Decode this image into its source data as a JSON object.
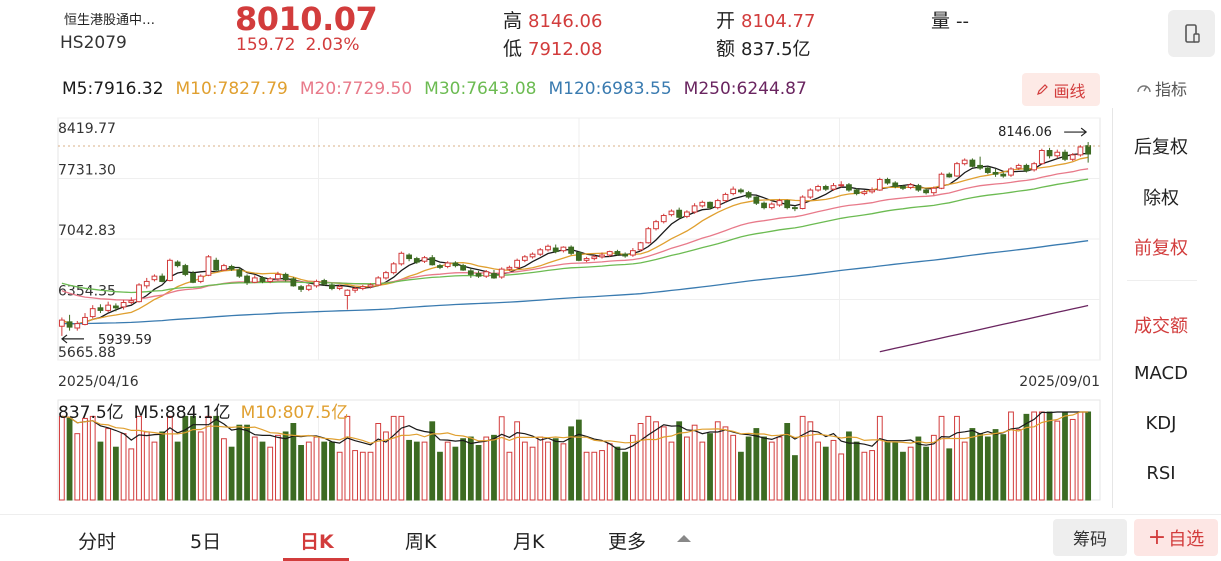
{
  "header": {
    "name": "恒生港股通中…",
    "code": "HS2079",
    "price": "8010.07",
    "change_abs": "159.72",
    "change_pct": "2.03%",
    "high_label": "高",
    "high": "8146.06",
    "low_label": "低",
    "low": "7912.08",
    "open_label": "开",
    "open": "8104.77",
    "amount_label": "额",
    "amount": "837.5亿",
    "volume_label": "量",
    "volume": "--"
  },
  "ma": [
    {
      "label": "M5:7916.32",
      "color": "#1a1a1a"
    },
    {
      "label": "M10:7827.79",
      "color": "#e0a030"
    },
    {
      "label": "M20:7729.50",
      "color": "#e87a8a"
    },
    {
      "label": "M30:7643.08",
      "color": "#6cbb52"
    },
    {
      "label": "M120:6983.55",
      "color": "#3a7bb0"
    },
    {
      "label": "M250:6244.87",
      "color": "#6a2560"
    }
  ],
  "toolbar": {
    "draw_label": "画线",
    "indicator_label": "指标"
  },
  "side": {
    "items": [
      {
        "label": "后复权",
        "active": false
      },
      {
        "label": "除权",
        "active": false
      },
      {
        "label": "前复权",
        "active": true
      },
      {
        "label": "成交额",
        "active": true
      },
      {
        "label": "MACD",
        "active": false
      },
      {
        "label": "KDJ",
        "active": false
      },
      {
        "label": "RSI",
        "active": false
      }
    ]
  },
  "chart_data": {
    "type": "candlestick",
    "y_ticks": [
      "8419.77",
      "7731.30",
      "7042.83",
      "6354.35",
      "5665.88"
    ],
    "ylim": [
      5665.88,
      8419.77
    ],
    "date_start": "2025/04/16",
    "date_end": "2025/09/01",
    "max_annotation": "8146.06",
    "min_annotation": "5939.59",
    "colors": {
      "up": "#d23c3c",
      "down": "#3d6b22"
    },
    "ohlc": [
      [
        6050,
        6120,
        5940,
        6150
      ],
      [
        6100,
        6040,
        6000,
        6180
      ],
      [
        6030,
        6080,
        6000,
        6110
      ],
      [
        6070,
        6150,
        6060,
        6200
      ],
      [
        6160,
        6250,
        6140,
        6290
      ],
      [
        6260,
        6230,
        6200,
        6300
      ],
      [
        6230,
        6290,
        6210,
        6330
      ],
      [
        6280,
        6260,
        6220,
        6310
      ],
      [
        6270,
        6320,
        6240,
        6350
      ],
      [
        6320,
        6340,
        6300,
        6380
      ],
      [
        6330,
        6520,
        6320,
        6540
      ],
      [
        6510,
        6560,
        6480,
        6600
      ],
      [
        6580,
        6620,
        6560,
        6640
      ],
      [
        6620,
        6560,
        6550,
        6650
      ],
      [
        6570,
        6800,
        6560,
        6820
      ],
      [
        6780,
        6740,
        6720,
        6800
      ],
      [
        6740,
        6640,
        6620,
        6760
      ],
      [
        6650,
        6550,
        6540,
        6680
      ],
      [
        6560,
        6620,
        6540,
        6640
      ],
      [
        6630,
        6840,
        6620,
        6860
      ],
      [
        6800,
        6690,
        6680,
        6830
      ],
      [
        6690,
        6740,
        6680,
        6760
      ],
      [
        6730,
        6700,
        6680,
        6750
      ],
      [
        6690,
        6620,
        6600,
        6720
      ],
      [
        6620,
        6550,
        6520,
        6640
      ],
      [
        6550,
        6600,
        6540,
        6630
      ],
      [
        6600,
        6560,
        6540,
        6620
      ],
      [
        6560,
        6590,
        6540,
        6610
      ],
      [
        6590,
        6640,
        6570,
        6670
      ],
      [
        6640,
        6580,
        6560,
        6660
      ],
      [
        6590,
        6510,
        6500,
        6610
      ],
      [
        6500,
        6470,
        6440,
        6520
      ],
      [
        6470,
        6510,
        6450,
        6530
      ],
      [
        6510,
        6560,
        6490,
        6580
      ],
      [
        6570,
        6530,
        6510,
        6590
      ],
      [
        6520,
        6480,
        6460,
        6540
      ],
      [
        6480,
        6500,
        6460,
        6520
      ],
      [
        6400,
        6460,
        6240,
        6470
      ],
      [
        6460,
        6480,
        6430,
        6500
      ],
      [
        6480,
        6500,
        6460,
        6520
      ],
      [
        6500,
        6520,
        6480,
        6540
      ],
      [
        6520,
        6600,
        6510,
        6620
      ],
      [
        6600,
        6660,
        6580,
        6680
      ],
      [
        6660,
        6760,
        6640,
        6780
      ],
      [
        6760,
        6880,
        6740,
        6900
      ],
      [
        6860,
        6820,
        6790,
        6880
      ],
      [
        6820,
        6780,
        6760,
        6840
      ],
      [
        6790,
        6830,
        6770,
        6850
      ],
      [
        6830,
        6750,
        6740,
        6860
      ],
      [
        6740,
        6720,
        6700,
        6760
      ],
      [
        6730,
        6770,
        6710,
        6790
      ],
      [
        6770,
        6740,
        6720,
        6790
      ],
      [
        6740,
        6690,
        6680,
        6760
      ],
      [
        6680,
        6640,
        6600,
        6710
      ],
      [
        6650,
        6620,
        6600,
        6680
      ],
      [
        6620,
        6670,
        6600,
        6690
      ],
      [
        6650,
        6600,
        6590,
        6690
      ],
      [
        6610,
        6700,
        6590,
        6720
      ],
      [
        6700,
        6720,
        6680,
        6740
      ],
      [
        6720,
        6800,
        6700,
        6820
      ],
      [
        6800,
        6840,
        6780,
        6860
      ],
      [
        6840,
        6870,
        6820,
        6890
      ],
      [
        6870,
        6920,
        6850,
        6940
      ],
      [
        6920,
        6960,
        6900,
        6980
      ],
      [
        6940,
        6900,
        6880,
        6980
      ],
      [
        6910,
        6950,
        6890,
        6960
      ],
      [
        6950,
        6880,
        6860,
        6970
      ],
      [
        6890,
        6800,
        6790,
        6900
      ],
      [
        6800,
        6820,
        6780,
        6840
      ],
      [
        6820,
        6840,
        6800,
        6860
      ],
      [
        6840,
        6860,
        6820,
        6890
      ],
      [
        6860,
        6900,
        6840,
        6910
      ],
      [
        6900,
        6870,
        6850,
        6920
      ],
      [
        6870,
        6850,
        6830,
        6890
      ],
      [
        6860,
        6910,
        6840,
        6940
      ],
      [
        6920,
        7000,
        6900,
        7010
      ],
      [
        7000,
        7160,
        6990,
        7180
      ],
      [
        7160,
        7240,
        7140,
        7260
      ],
      [
        7240,
        7310,
        7220,
        7330
      ],
      [
        7320,
        7360,
        7300,
        7380
      ],
      [
        7370,
        7290,
        7280,
        7400
      ],
      [
        7300,
        7350,
        7280,
        7370
      ],
      [
        7350,
        7420,
        7330,
        7450
      ],
      [
        7420,
        7460,
        7400,
        7480
      ],
      [
        7460,
        7400,
        7380,
        7470
      ],
      [
        7400,
        7480,
        7380,
        7500
      ],
      [
        7480,
        7550,
        7460,
        7570
      ],
      [
        7560,
        7610,
        7540,
        7640
      ],
      [
        7600,
        7580,
        7560,
        7620
      ],
      [
        7570,
        7520,
        7500,
        7590
      ],
      [
        7520,
        7450,
        7430,
        7530
      ],
      [
        7450,
        7400,
        7380,
        7470
      ],
      [
        7400,
        7440,
        7380,
        7460
      ],
      [
        7430,
        7480,
        7410,
        7500
      ],
      [
        7480,
        7400,
        7380,
        7490
      ],
      [
        7400,
        7390,
        7360,
        7420
      ],
      [
        7390,
        7520,
        7380,
        7540
      ],
      [
        7520,
        7600,
        7500,
        7620
      ],
      [
        7600,
        7640,
        7580,
        7660
      ],
      [
        7640,
        7610,
        7590,
        7660
      ],
      [
        7610,
        7650,
        7590,
        7680
      ],
      [
        7650,
        7660,
        7630,
        7700
      ],
      [
        7660,
        7600,
        7580,
        7680
      ],
      [
        7600,
        7560,
        7540,
        7620
      ],
      [
        7560,
        7580,
        7540,
        7600
      ],
      [
        7580,
        7600,
        7560,
        7630
      ],
      [
        7600,
        7720,
        7590,
        7740
      ],
      [
        7720,
        7680,
        7660,
        7740
      ],
      [
        7680,
        7640,
        7620,
        7700
      ],
      [
        7640,
        7620,
        7600,
        7660
      ],
      [
        7630,
        7660,
        7610,
        7680
      ],
      [
        7650,
        7600,
        7580,
        7670
      ],
      [
        7600,
        7570,
        7550,
        7620
      ],
      [
        7570,
        7620,
        7540,
        7640
      ],
      [
        7620,
        7780,
        7610,
        7800
      ],
      [
        7780,
        7750,
        7740,
        7800
      ],
      [
        7760,
        7900,
        7750,
        7920
      ],
      [
        7900,
        7940,
        7880,
        7960
      ],
      [
        7940,
        7870,
        7860,
        7960
      ],
      [
        7880,
        7850,
        7830,
        7980
      ],
      [
        7850,
        7800,
        7780,
        7870
      ],
      [
        7800,
        7780,
        7750,
        7840
      ],
      [
        7780,
        7760,
        7740,
        7800
      ],
      [
        7770,
        7840,
        7750,
        7860
      ],
      [
        7850,
        7880,
        7830,
        7900
      ],
      [
        7880,
        7820,
        7800,
        7900
      ],
      [
        7830,
        7900,
        7810,
        7920
      ],
      [
        7900,
        8050,
        7890,
        8070
      ],
      [
        8050,
        7990,
        7960,
        8080
      ],
      [
        7990,
        8030,
        7960,
        8060
      ],
      [
        8030,
        7950,
        7930,
        8060
      ],
      [
        7950,
        8000,
        7930,
        8020
      ],
      [
        8000,
        8090,
        7980,
        8110
      ],
      [
        8104.77,
        8010.07,
        7912.08,
        8146.06
      ]
    ],
    "volume_legend": [
      "837.5亿",
      "M5:884.1亿",
      "M10:807.5亿"
    ],
    "volume_colors": [
      "#1a1a1a",
      "#1a1a1a",
      "#e0a030"
    ]
  },
  "tabs": [
    "分时",
    "5日",
    "日K",
    "周K",
    "月K",
    "更多"
  ],
  "active_tab": "日K",
  "buttons": {
    "chip": "筹码",
    "fav": "自选"
  }
}
